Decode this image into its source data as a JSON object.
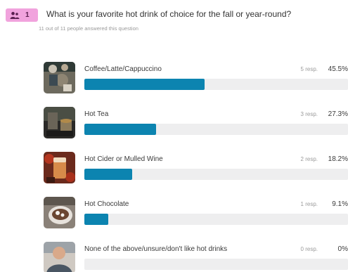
{
  "question": {
    "badge_icon": "users-icon",
    "number": "1",
    "title": "What is your favorite hot drink of choice for the fall or year-round?",
    "subtitle": "11 out of 11 people answered this question"
  },
  "colors": {
    "badge": "#f1a3dd",
    "bar_fill": "#0c84b0",
    "bar_track": "#eeeeef"
  },
  "options": [
    {
      "label": "Coffee/Latte/Cappuccino",
      "responses": "5 resp.",
      "percent": "45.5%",
      "value": 45.5,
      "thumb_icon": "coffee-photo-icon"
    },
    {
      "label": "Hot Tea",
      "responses": "3 resp.",
      "percent": "27.3%",
      "value": 27.3,
      "thumb_icon": "tea-photo-icon"
    },
    {
      "label": "Hot Cider or Mulled Wine",
      "responses": "2 resp.",
      "percent": "18.2%",
      "value": 18.2,
      "thumb_icon": "cider-photo-icon"
    },
    {
      "label": "Hot Chocolate",
      "responses": "1 resp.",
      "percent": "9.1%",
      "value": 9.1,
      "thumb_icon": "hot-chocolate-photo-icon"
    },
    {
      "label": "None of the above/unsure/don't like hot drinks",
      "responses": "0 resp.",
      "percent": "0%",
      "value": 0,
      "thumb_icon": "person-photo-icon"
    }
  ]
}
